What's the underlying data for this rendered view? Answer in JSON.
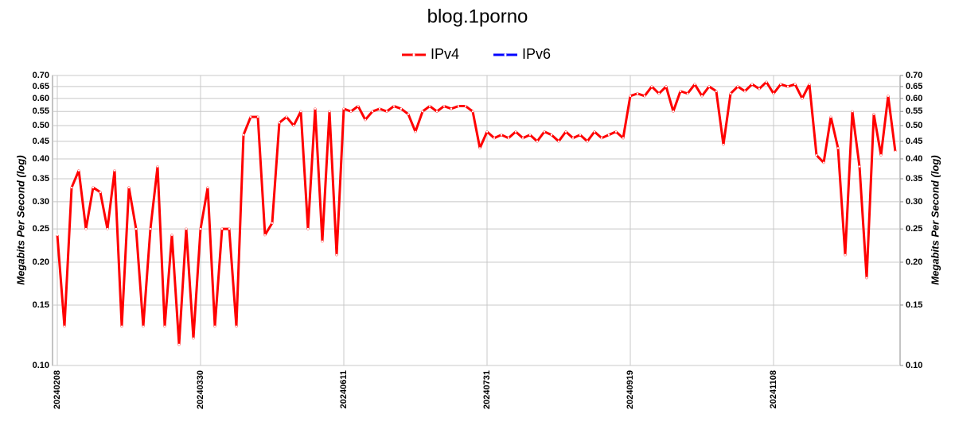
{
  "chart_data": {
    "type": "line",
    "title": "blog.1porno",
    "y_label": "Megabits Per Second (log)",
    "y2_label": "Megabits Per Second (log)",
    "y_scale": "log",
    "grid": true,
    "legend": "top",
    "ylim": [
      0.1,
      0.7
    ],
    "yticks": [
      {
        "value": 0.1,
        "label": "0.10"
      },
      0.15,
      {
        "value": 0.2,
        "label": "0.20"
      },
      0.25,
      {
        "value": 0.3,
        "label": "0.30"
      },
      0.35,
      {
        "value": 0.4,
        "label": "0.40"
      },
      0.45,
      {
        "value": 0.5,
        "label": "0.50"
      },
      0.55,
      {
        "value": 0.6,
        "label": "0.60"
      },
      0.65,
      {
        "value": 0.7,
        "label": "0.70"
      }
    ],
    "y2lim": [
      0.1,
      0.7
    ],
    "y2ticks": [
      {
        "value": 0.1,
        "label": "0.10"
      },
      0.15,
      {
        "value": 0.2,
        "label": "0.20"
      },
      0.25,
      {
        "value": 0.3,
        "label": "0.30"
      },
      0.35,
      {
        "value": 0.4,
        "label": "0.40"
      },
      0.45,
      {
        "value": 0.5,
        "label": "0.50"
      },
      0.55,
      {
        "value": 0.6,
        "label": "0.60"
      },
      0.65,
      {
        "value": 0.7,
        "label": "0.70"
      }
    ],
    "categories": [
      "20240208",
      null,
      null,
      null,
      null,
      null,
      null,
      null,
      null,
      null,
      null,
      null,
      null,
      null,
      null,
      null,
      null,
      null,
      null,
      null,
      "20240330",
      null,
      null,
      null,
      null,
      null,
      null,
      null,
      null,
      null,
      null,
      null,
      null,
      null,
      null,
      null,
      null,
      null,
      null,
      null,
      "20240611",
      null,
      null,
      null,
      null,
      null,
      null,
      null,
      null,
      null,
      null,
      null,
      null,
      null,
      null,
      null,
      null,
      null,
      null,
      null,
      "20240731",
      null,
      null,
      null,
      null,
      null,
      null,
      null,
      null,
      null,
      null,
      null,
      null,
      null,
      null,
      null,
      null,
      null,
      null,
      null,
      "20240919",
      null,
      null,
      null,
      null,
      null,
      null,
      null,
      null,
      null,
      null,
      null,
      null,
      null,
      null,
      null,
      null,
      null,
      null,
      null,
      "20241108",
      null,
      null,
      null,
      null,
      null,
      null,
      null,
      null,
      null,
      null,
      null,
      null,
      null,
      null,
      null,
      null,
      null
    ],
    "series": [
      {
        "name": "IPv4",
        "color": "#ff0000",
        "values": [
          0.24,
          0.13,
          0.33,
          0.37,
          0.25,
          0.33,
          0.32,
          0.25,
          0.37,
          0.13,
          0.33,
          0.25,
          0.13,
          0.25,
          0.38,
          0.13,
          0.24,
          0.115,
          0.25,
          0.12,
          0.25,
          0.33,
          0.13,
          0.25,
          0.25,
          0.13,
          0.47,
          0.53,
          0.53,
          0.24,
          0.26,
          0.51,
          0.53,
          0.5,
          0.55,
          0.25,
          0.56,
          0.23,
          0.55,
          0.21,
          0.56,
          0.55,
          0.57,
          0.52,
          0.55,
          0.56,
          0.55,
          0.57,
          0.56,
          0.54,
          0.48,
          0.55,
          0.57,
          0.55,
          0.57,
          0.56,
          0.57,
          0.57,
          0.55,
          0.43,
          0.48,
          0.46,
          0.47,
          0.46,
          0.48,
          0.46,
          0.47,
          0.45,
          0.48,
          0.47,
          0.45,
          0.48,
          0.46,
          0.47,
          0.45,
          0.48,
          0.46,
          0.47,
          0.48,
          0.46,
          0.61,
          0.62,
          0.61,
          0.65,
          0.62,
          0.65,
          0.55,
          0.63,
          0.62,
          0.66,
          0.61,
          0.65,
          0.63,
          0.44,
          0.62,
          0.65,
          0.63,
          0.66,
          0.64,
          0.67,
          0.62,
          0.66,
          0.65,
          0.66,
          0.6,
          0.66,
          0.41,
          0.39,
          0.53,
          0.43,
          0.21,
          0.55,
          0.38,
          0.18,
          0.54,
          0.41,
          0.61,
          0.42
        ]
      },
      {
        "name": "IPv6",
        "color": "#0000ff",
        "values": [
          null,
          null,
          null,
          null,
          null,
          null,
          null,
          null,
          null,
          null,
          null,
          null,
          null,
          null,
          null,
          null,
          null,
          null,
          null,
          null,
          null,
          null,
          null,
          null,
          null,
          null,
          null,
          null,
          null,
          null,
          null,
          null,
          null,
          null,
          null,
          null,
          null,
          null,
          null,
          null,
          null,
          null,
          null,
          null,
          null,
          null,
          null,
          null,
          null,
          null,
          null,
          null,
          null,
          null,
          null,
          null,
          null,
          null,
          null,
          null,
          null,
          null,
          null,
          null,
          null,
          null,
          null,
          null,
          null,
          null,
          null,
          null,
          null,
          null,
          null,
          null,
          null,
          null,
          null,
          null,
          null,
          null,
          null,
          null,
          null,
          null,
          null,
          null,
          null,
          null,
          null,
          null,
          null,
          null,
          null,
          null,
          null,
          null,
          null,
          null,
          null,
          null,
          null,
          null,
          null,
          null,
          null,
          null,
          null,
          null,
          null,
          null,
          null,
          null,
          null,
          null,
          null,
          null
        ]
      }
    ]
  }
}
